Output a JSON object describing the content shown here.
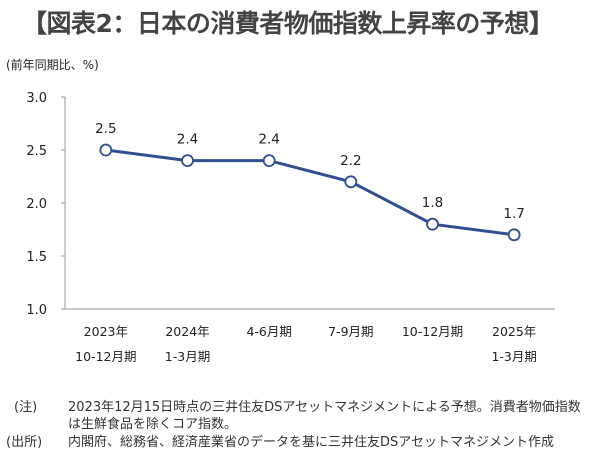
{
  "title": "【図表2：日本の消費者物価指数上昇率の予想】",
  "chart_data": {
    "type": "line",
    "title": "【図表2：日本の消費者物価指数上昇率の予想】",
    "ylabel": "(前年同期比、%)",
    "categories": [
      [
        "2023年",
        "10-12月期"
      ],
      [
        "2024年",
        "1-3月期"
      ],
      [
        "4-6月期",
        ""
      ],
      [
        "7-9月期",
        ""
      ],
      [
        "10-12月期",
        ""
      ],
      [
        "2025年",
        "1-3月期"
      ]
    ],
    "values": [
      2.5,
      2.4,
      2.4,
      2.2,
      1.8,
      1.7
    ],
    "data_labels": [
      "2.5",
      "2.4",
      "2.4",
      "2.2",
      "1.8",
      "1.7"
    ],
    "ylim": [
      1.0,
      3.0
    ],
    "yticks": [
      "1.0",
      "1.5",
      "2.0",
      "2.5",
      "3.0"
    ],
    "grid": false,
    "line_color": "#2f4f8f",
    "marker_fill": "#ffffff"
  },
  "notes": {
    "note_label": "(注)",
    "note_line1": "2023年12月15日時点の三井住友DSアセットマネジメントによる予想。消費者物価指数",
    "note_line2": "は生鮮食品を除くコア指数。",
    "source_label": "(出所)",
    "source_text": "内閣府、総務省、経済産業省のデータを基に三井住友DSアセットマネジメント作成"
  }
}
